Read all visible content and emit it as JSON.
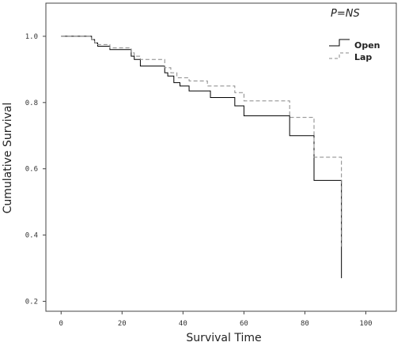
{
  "chart_data": {
    "type": "line",
    "xlabel": "Survival Time",
    "ylabel": "Cumulative Survival",
    "annotation": "P=NS",
    "xlim": [
      -5,
      110
    ],
    "ylim": [
      0.17,
      1.1
    ],
    "xticks": [
      0,
      20,
      40,
      60,
      80,
      100
    ],
    "yticks": [
      0.2,
      0.4,
      0.6,
      0.8,
      1.0
    ],
    "xtick_labels": [
      "0",
      "20",
      "40",
      "60",
      "80",
      "100"
    ],
    "ytick_labels": [
      "0.2",
      "0.4",
      "0.6",
      "0.8",
      "1.0"
    ],
    "grid": false,
    "legend_position": "top-right",
    "series": [
      {
        "name": "Open",
        "style": "solid",
        "color": "#000000",
        "x": [
          0,
          10,
          11,
          12,
          16,
          23,
          24,
          26,
          34,
          35,
          37,
          39,
          42,
          49,
          57,
          60,
          75,
          83,
          92
        ],
        "y": [
          1.0,
          0.99,
          0.98,
          0.97,
          0.96,
          0.94,
          0.93,
          0.91,
          0.89,
          0.88,
          0.86,
          0.85,
          0.835,
          0.815,
          0.79,
          0.76,
          0.7,
          0.565,
          0.27
        ]
      },
      {
        "name": "Lap",
        "style": "dashed",
        "color": "#888888",
        "x": [
          0,
          10,
          11,
          12,
          16,
          23,
          24,
          26,
          34,
          36,
          38,
          42,
          48,
          57,
          60,
          75,
          83,
          92
        ],
        "y": [
          1.0,
          0.99,
          0.98,
          0.975,
          0.965,
          0.95,
          0.94,
          0.93,
          0.905,
          0.89,
          0.875,
          0.865,
          0.85,
          0.83,
          0.805,
          0.755,
          0.635,
          0.365
        ]
      }
    ]
  }
}
